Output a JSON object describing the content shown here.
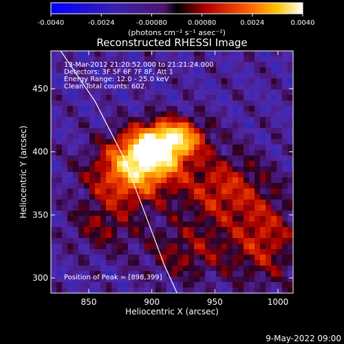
{
  "chart_data": {
    "type": "heatmap",
    "title": "Reconstructed RHESSI Image",
    "xlabel": "Heliocentric X (arcsec)",
    "ylabel": "Heliocentric Y (arcsec)",
    "x_ticks": [
      850,
      900,
      950,
      1000
    ],
    "y_ticks": [
      300,
      350,
      400,
      450
    ],
    "xlim": [
      820,
      1012
    ],
    "ylim": [
      288,
      480
    ],
    "colorbar": {
      "ticks": [
        "-0.0040",
        "-0.0024",
        "-0.00080",
        "0.00080",
        "0.0024",
        "0.0040"
      ],
      "range": [
        -0.004,
        0.004
      ],
      "unit_label": "(photons cm⁻² s⁻¹ asec⁻²)"
    },
    "annotations": [
      "13-Mar-2012 21:20:52.000 to 21:21:24.000",
      "Detectors: 3F 5F 6F 7F 8F, Att 1",
      "Energy Range: 12.0 - 25.0 keV",
      "Clean    Total counts: 602."
    ],
    "peak_label": "Position of Peak = [898,399]",
    "peak": {
      "x": 898,
      "y": 399
    },
    "limb_curve": [
      [
        825,
        484
      ],
      [
        855,
        440
      ],
      [
        878,
        395
      ],
      [
        895,
        350
      ],
      [
        910,
        310
      ],
      [
        920,
        288
      ]
    ],
    "emission_sources": [
      {
        "x": 900,
        "y": 399,
        "sx": 18,
        "sy": 14,
        "amp": 1.0
      },
      {
        "x": 920,
        "y": 412,
        "sx": 16,
        "sy": 10,
        "amp": 0.7
      },
      {
        "x": 880,
        "y": 380,
        "sx": 22,
        "sy": 18,
        "amp": 0.6
      },
      {
        "x": 955,
        "y": 370,
        "sx": 24,
        "sy": 20,
        "amp": 0.45
      },
      {
        "x": 990,
        "y": 330,
        "sx": 18,
        "sy": 24,
        "amp": 0.4
      },
      {
        "x": 930,
        "y": 320,
        "sx": 26,
        "sy": 16,
        "amp": 0.3
      },
      {
        "x": 860,
        "y": 340,
        "sx": 18,
        "sy": 14,
        "amp": 0.25
      }
    ]
  },
  "footer": {
    "timestamp": "9-May-2022 09:00"
  }
}
